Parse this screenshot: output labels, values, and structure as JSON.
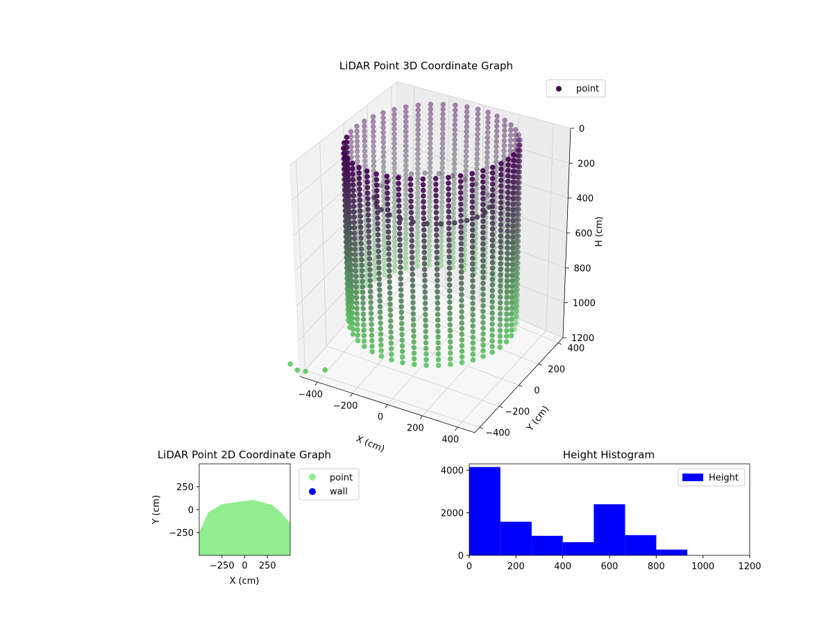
{
  "chart_data": [
    {
      "type": "scatter",
      "projection": "3d",
      "title": "LiDAR Point 3D Coordinate Graph",
      "xlabel": "X (cm)",
      "ylabel": "Y (cm)",
      "zlabel": "H (cm)",
      "xlim": [
        -500,
        500
      ],
      "ylim": [
        -450,
        450
      ],
      "zlim": [
        0,
        1200
      ],
      "z_inverted": true,
      "xticks": [
        -400,
        -200,
        0,
        200,
        400
      ],
      "yticks": [
        -400,
        -200,
        0,
        200,
        400
      ],
      "zticks": [
        0,
        200,
        400,
        600,
        800,
        1000,
        1200
      ],
      "legend": {
        "placement": "upper-right",
        "entries": [
          "point"
        ]
      },
      "colormap": "viridis",
      "colors": {
        "low": "#440154",
        "high": "#5ec962"
      },
      "grid": true,
      "series": [
        {
          "name": "point",
          "shape": "cylinder",
          "radius_cm": 380,
          "height_range": [
            0,
            1000
          ],
          "columns": 44,
          "ring_points": [
            {
              "x": -340,
              "y": -470,
              "h": 1100
            },
            {
              "x": -420,
              "y": -520,
              "h": 1100
            },
            {
              "x": -480,
              "y": -560,
              "h": 1050
            },
            {
              "x": -500,
              "y": -470,
              "h": 1150
            }
          ]
        }
      ]
    },
    {
      "type": "scatter",
      "title": "LiDAR Point 2D Coordinate Graph",
      "xlabel": "X (cm)",
      "ylabel": "Y (cm)",
      "xlim": [
        -500,
        500
      ],
      "ylim": [
        -500,
        500
      ],
      "xticks": [
        -250,
        0,
        250
      ],
      "yticks": [
        -250,
        0,
        250
      ],
      "legend": {
        "placement": "outside-right",
        "entries": [
          "point",
          "wall"
        ]
      },
      "series": [
        {
          "name": "point",
          "color": "#90ee90",
          "region_top_edge": [
            [
              -500,
              -250
            ],
            [
              -400,
              -30
            ],
            [
              -250,
              60
            ],
            [
              0,
              95
            ],
            [
              100,
              105
            ],
            [
              300,
              50
            ],
            [
              400,
              -30
            ],
            [
              500,
              -150
            ]
          ]
        },
        {
          "name": "wall",
          "color": "#0000ff",
          "points": []
        }
      ]
    },
    {
      "type": "bar",
      "title": "Height Histogram",
      "xlabel": "",
      "ylabel": "",
      "xlim": [
        0,
        1200
      ],
      "ylim": [
        0,
        4300
      ],
      "xticks": [
        0,
        200,
        400,
        600,
        800,
        1000,
        1200
      ],
      "yticks": [
        0,
        2000,
        4000
      ],
      "legend": {
        "placement": "upper-right",
        "entries": [
          "Height"
        ]
      },
      "color": "#0000ff",
      "bin_edges": [
        0,
        133,
        267,
        400,
        533,
        667,
        800,
        933
      ],
      "values": [
        4150,
        1580,
        920,
        620,
        2400,
        950,
        270
      ]
    }
  ]
}
